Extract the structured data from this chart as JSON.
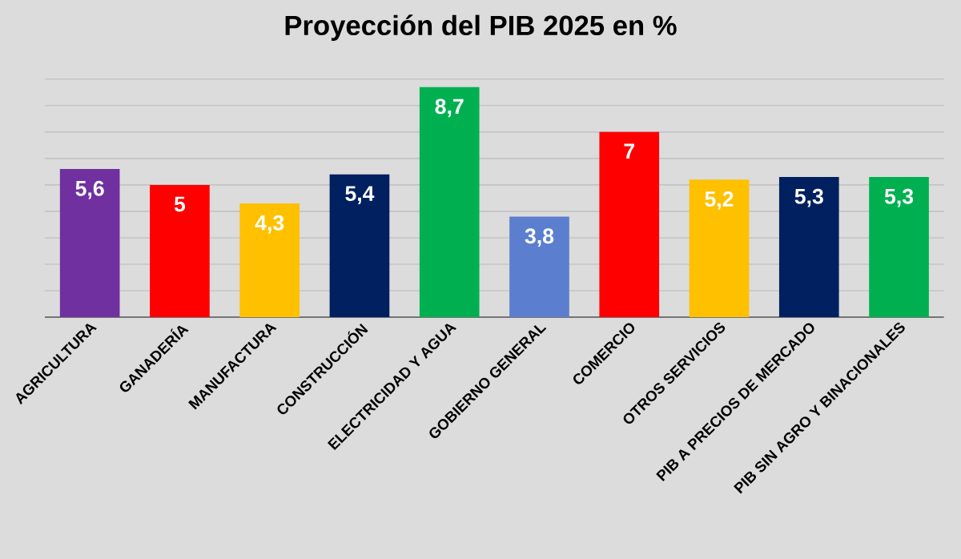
{
  "chart_data": {
    "type": "bar",
    "title": "Proyección del PIB 2025 en %",
    "categories": [
      "AGRICULTURA",
      "GANADERÍA",
      "MANUFACTURA",
      "CONSTRUCCIÓN",
      "ELECTRICIDAD Y AGUA",
      "GOBIERNO GENERAL",
      "COMERCIO",
      "OTROS SERVICIOS",
      "PIB A PRECIOS DE MERCADO",
      "PIB SIN AGRO Y BINACIONALES"
    ],
    "values": [
      5.6,
      5,
      4.3,
      5.4,
      8.7,
      3.8,
      7,
      5.2,
      5.3,
      5.3
    ],
    "value_labels": [
      "5,6",
      "5",
      "4,3",
      "5,4",
      "8,7",
      "3,8",
      "7",
      "5,2",
      "5,3",
      "5,3"
    ],
    "colors": [
      "#7030a0",
      "#ff0000",
      "#ffc000",
      "#002060",
      "#00b050",
      "#5b7fce",
      "#ff0000",
      "#ffc000",
      "#002060",
      "#00b050"
    ],
    "grid": "y"
  }
}
